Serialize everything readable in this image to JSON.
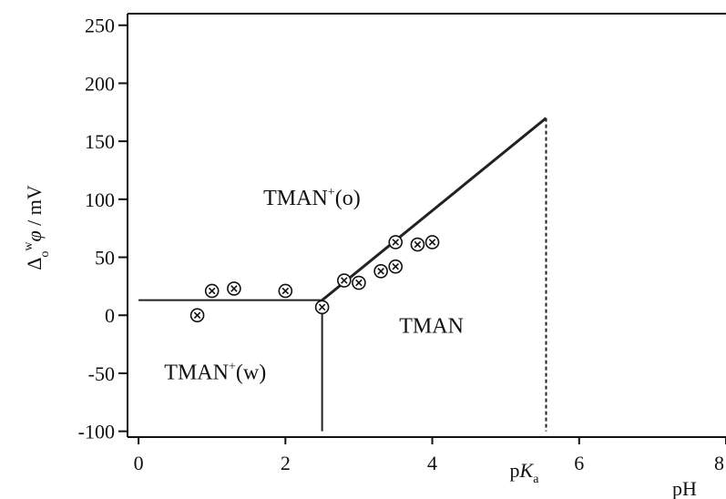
{
  "chart_data": {
    "type": "scatter",
    "title": "",
    "xlabel": "pH",
    "ylabel": "Δ_o^wφ / mV",
    "ylabel_parts": {
      "delta": "Δ",
      "sub": "o",
      "sup": "w",
      "phi": "φ",
      "rest": " / mV"
    },
    "xlim": [
      -0.15,
      8.0
    ],
    "ylim": [
      -105,
      260
    ],
    "x_ticks": [
      0,
      2,
      4,
      6,
      8
    ],
    "y_ticks": [
      -100,
      -50,
      0,
      50,
      100,
      150,
      200,
      250
    ],
    "grid": false,
    "pka_label": {
      "p": "p",
      "K": "K",
      "sub": "a",
      "x": 5.55
    },
    "series": [
      {
        "marker": "circled-x",
        "points": [
          {
            "x": 0.8,
            "y": 0
          },
          {
            "x": 1.0,
            "y": 21
          },
          {
            "x": 1.3,
            "y": 23
          },
          {
            "x": 2.0,
            "y": 21
          },
          {
            "x": 2.5,
            "y": 7
          },
          {
            "x": 2.8,
            "y": 30
          },
          {
            "x": 3.0,
            "y": 28
          },
          {
            "x": 3.3,
            "y": 38
          },
          {
            "x": 3.5,
            "y": 42
          },
          {
            "x": 3.5,
            "y": 63
          },
          {
            "x": 3.8,
            "y": 61
          },
          {
            "x": 4.0,
            "y": 63
          }
        ]
      }
    ],
    "boundary_lines": [
      {
        "style": "solid",
        "from": [
          0,
          13
        ],
        "to": [
          2.5,
          13
        ]
      },
      {
        "style": "solid",
        "from": [
          2.5,
          13
        ],
        "to": [
          2.5,
          -100
        ]
      },
      {
        "style": "solid-bold",
        "from": [
          2.5,
          13
        ],
        "to": [
          5.55,
          170
        ]
      },
      {
        "style": "dashed",
        "from": [
          5.55,
          170
        ],
        "to": [
          5.55,
          -100
        ]
      }
    ],
    "regions": [
      {
        "base": "TMAN",
        "sup": "+",
        "suffix": "(o)",
        "x": 1.7,
        "y": 95
      },
      {
        "base": "TMAN",
        "sup": "+",
        "suffix": "(w)",
        "x": 0.35,
        "y": -55
      },
      {
        "base": "TMAN",
        "sup": "",
        "suffix": "",
        "x": 3.55,
        "y": -15
      }
    ]
  }
}
